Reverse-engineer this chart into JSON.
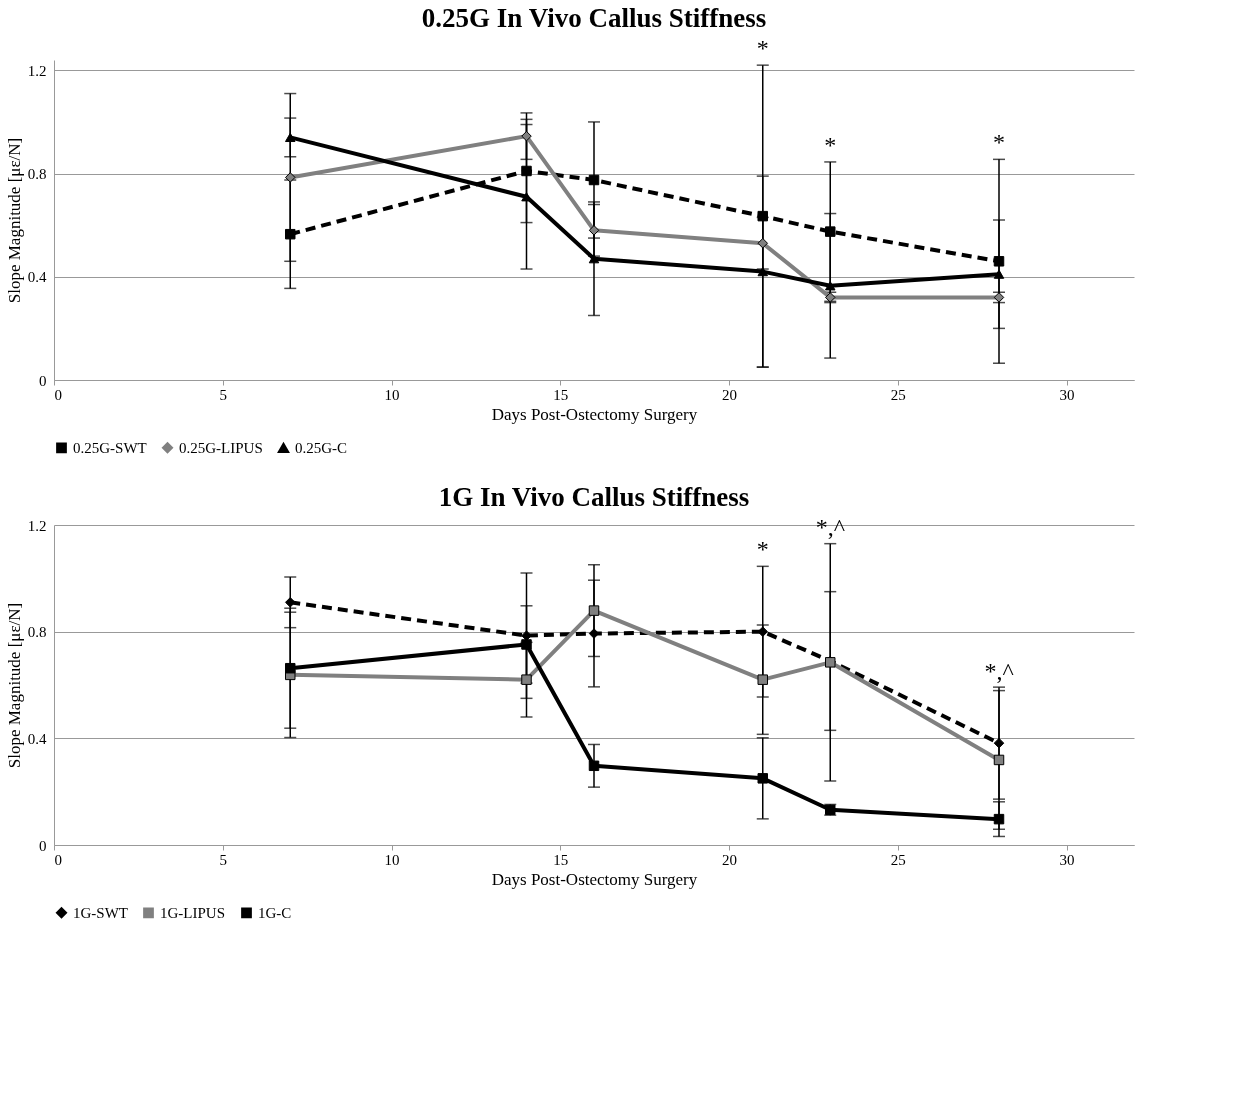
{
  "chart_data": [
    {
      "type": "line",
      "title": "0.25G In Vivo Callus Stiffness",
      "xlabel": "Days Post-Ostectomy Surgery",
      "ylabel": "Slope Magnitude [με/N]",
      "x": [
        7,
        14,
        16,
        21,
        23,
        28
      ],
      "xlim": [
        0,
        32
      ],
      "xticks": [
        0,
        5,
        10,
        15,
        20,
        25,
        30
      ],
      "ylim": [
        0,
        1.24
      ],
      "yticks": [
        0,
        0.4,
        0.8,
        1.2
      ],
      "grid": "y",
      "legend": "bottom",
      "series": [
        {
          "name": "0.25G-SWT",
          "color": "#000000",
          "line_style": "dashed",
          "marker": "square",
          "values": [
            0.565,
            0.81,
            0.775,
            0.635,
            0.575,
            0.46
          ],
          "errors": [
            0.21,
            0.2,
            0.225,
            0.585,
            0.27,
            0.395
          ]
        },
        {
          "name": "0.25G-LIPUS",
          "color": "#808080",
          "line_style": "solid",
          "marker": "diamond",
          "values": [
            0.785,
            0.945,
            0.58,
            0.53,
            0.32,
            0.32
          ],
          "errors": [
            0.325,
            0.09,
            0.1,
            0.1,
            0.02,
            0.02
          ]
        },
        {
          "name": "0.25G-C",
          "color": "#000000",
          "line_style": "solid",
          "marker": "triangle",
          "values": [
            0.94,
            0.71,
            0.47,
            0.42,
            0.365,
            0.41
          ],
          "errors": [
            0.075,
            0.28,
            0.22,
            0.37,
            0.28,
            0.21
          ]
        }
      ],
      "annotations": [
        {
          "text": "*",
          "x": 21,
          "y": 1.22
        },
        {
          "text": "*",
          "x": 23,
          "y": 0.845
        },
        {
          "text": "*",
          "x": 28,
          "y": 0.855
        }
      ]
    },
    {
      "type": "line",
      "title": "1G In Vivo Callus Stiffness",
      "xlabel": "Days Post-Ostectomy Surgery",
      "ylabel": "Slope Magnitude [με/N]",
      "x": [
        7,
        14,
        16,
        21,
        23,
        28
      ],
      "xlim": [
        0,
        32
      ],
      "xticks": [
        0,
        5,
        10,
        15,
        20,
        25,
        30
      ],
      "ylim": [
        0,
        1.2
      ],
      "yticks": [
        0,
        0.4,
        0.8,
        1.2
      ],
      "grid": "y",
      "legend": "bottom",
      "series": [
        {
          "name": "1G-SWT",
          "color": "#000000",
          "line_style": "dashed",
          "marker": "diamond",
          "values": [
            0.91,
            0.785,
            0.793,
            0.8,
            0.69,
            0.382
          ],
          "errors": [
            0.095,
            0.235,
            0.2,
            0.245,
            0.26,
            0.21
          ]
        },
        {
          "name": "1G-LIPUS",
          "color": "#808080",
          "line_style": "solid",
          "marker": "square",
          "values": [
            0.638,
            0.62,
            0.879,
            0.62,
            0.685,
            0.319
          ],
          "errors": [
            0.235,
            0.14,
            0.172,
            0.205,
            0.445,
            0.26
          ]
        },
        {
          "name": "1G-C",
          "color": "#000000",
          "line_style": "solid",
          "marker": "square",
          "values": [
            0.663,
            0.752,
            0.297,
            0.25,
            0.132,
            0.097
          ],
          "errors": [
            0.225,
            0.145,
            0.08,
            0.152,
            0.02,
            0.065
          ]
        }
      ],
      "annotations": [
        {
          "text": "*",
          "x": 21,
          "y": 1.045
        },
        {
          "text": "*,^",
          "x": 23,
          "y": 1.13
        },
        {
          "text": "*,^",
          "x": 28,
          "y": 0.59
        }
      ]
    }
  ]
}
